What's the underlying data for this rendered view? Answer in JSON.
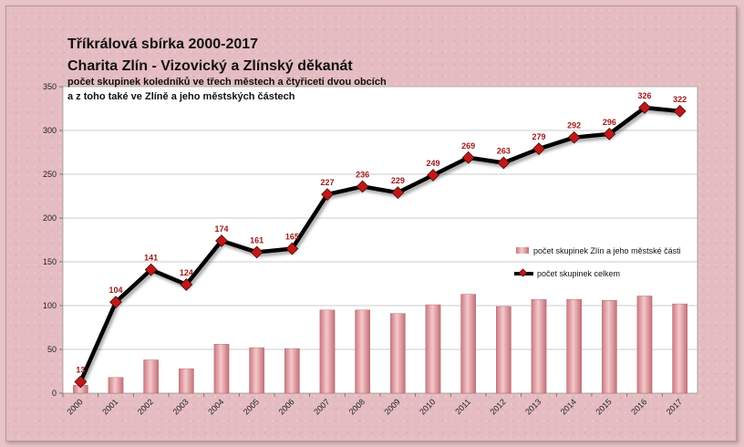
{
  "chart_data": {
    "type": "bar+line",
    "title": "Tříkrálová sbírka 2000-2017",
    "subtitle": "Charita Zlín - Vizovický a Zlínský děkanát",
    "description_lines": [
      "počet skupinek koledníků ve třech městech a čtyřiceti dvou obcích",
      "a  z toho také ve Zlíně a jeho městských částech"
    ],
    "categories": [
      "2000",
      "2001",
      "2002",
      "2003",
      "2004",
      "2005",
      "2006",
      "2007",
      "2008",
      "2009",
      "2010",
      "2011",
      "2012",
      "2013",
      "2014",
      "2015",
      "2016",
      "2017"
    ],
    "series": [
      {
        "name": "počet skupinek Zlín a jeho městské části",
        "type": "bar",
        "color": "#e8a0a4",
        "values": [
          9,
          18,
          38,
          28,
          56,
          52,
          51,
          95,
          95,
          91,
          101,
          113,
          99,
          107,
          107,
          106,
          111,
          102
        ]
      },
      {
        "name": "počet skupinek celkem",
        "type": "line",
        "color": "#000000",
        "marker_color": "#c01818",
        "values": [
          13,
          104,
          141,
          124,
          174,
          161,
          165,
          227,
          236,
          229,
          249,
          269,
          263,
          279,
          292,
          296,
          326,
          322
        ]
      }
    ],
    "y_ticks": [
      0,
      50,
      100,
      150,
      200,
      250,
      300,
      350
    ],
    "ylim": [
      0,
      350
    ],
    "grid": "horizontal",
    "legend_position": "right"
  }
}
